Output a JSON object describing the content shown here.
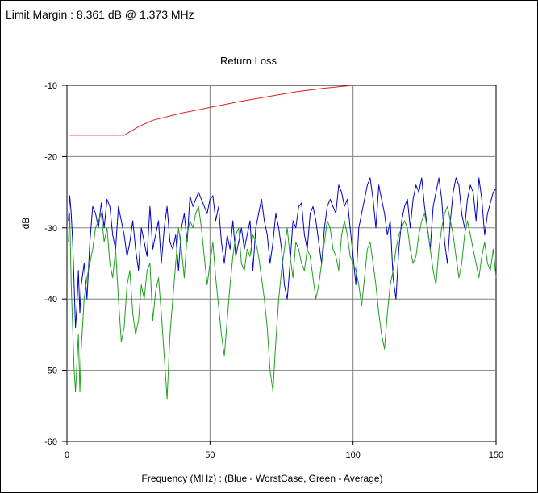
{
  "header": {
    "limit_margin": "Limit Margin : 8.361 dB @ 1.373 MHz"
  },
  "chart_data": {
    "type": "line",
    "title": "Return Loss",
    "xlabel": "Frequency (MHz) : (Blue - WorstCase, Green - Average)",
    "ylabel": "dB",
    "xlim": [
      0,
      150
    ],
    "ylim": [
      -60,
      -10
    ],
    "xticks": [
      0,
      50,
      100,
      150
    ],
    "yticks": [
      -10,
      -20,
      -30,
      -40,
      -50,
      -60
    ],
    "grid": true,
    "series": [
      {
        "key": "limit",
        "color": "#e02020",
        "x": [
          1,
          20,
          25,
          30,
          40,
          50,
          60,
          70,
          80,
          90,
          100
        ],
        "y": [
          -17,
          -17,
          -15.8,
          -14.9,
          -13.9,
          -13.1,
          -12.3,
          -11.6,
          -10.9,
          -10.4,
          -10
        ]
      },
      {
        "key": "worstcase",
        "color": "#0000c8",
        "x": [
          0.5,
          1,
          1.5,
          2,
          2.5,
          3,
          3.5,
          4,
          4.5,
          5,
          6,
          7,
          8,
          9,
          10,
          11,
          12,
          13,
          14,
          15,
          16,
          17,
          18,
          19,
          20,
          21,
          22,
          23,
          24,
          25,
          26,
          27,
          28,
          29,
          30,
          31,
          32,
          33,
          34,
          35,
          36,
          37,
          38,
          39,
          40,
          41,
          42,
          43,
          44,
          45,
          46,
          47,
          48,
          49,
          50,
          51,
          52,
          53,
          54,
          55,
          56,
          57,
          58,
          59,
          60,
          61,
          62,
          63,
          64,
          65,
          66,
          67,
          68,
          69,
          70,
          71,
          72,
          73,
          74,
          75,
          76,
          77,
          78,
          79,
          80,
          81,
          82,
          83,
          84,
          85,
          86,
          87,
          88,
          89,
          90,
          91,
          92,
          93,
          94,
          95,
          96,
          97,
          98,
          99,
          100,
          101,
          102,
          103,
          104,
          105,
          106,
          107,
          108,
          109,
          110,
          111,
          112,
          113,
          114,
          115,
          116,
          117,
          118,
          119,
          120,
          121,
          122,
          123,
          124,
          125,
          126,
          127,
          128,
          129,
          130,
          131,
          132,
          133,
          134,
          135,
          136,
          137,
          138,
          139,
          140,
          141,
          142,
          143,
          144,
          145,
          146,
          147,
          148,
          149,
          150
        ],
        "y": [
          -29,
          -25.5,
          -28,
          -32,
          -38,
          -44,
          -41,
          -36,
          -42,
          -38,
          -35,
          -40,
          -32,
          -27,
          -28,
          -30,
          -26.5,
          -30,
          -26,
          -27,
          -31,
          -33,
          -27,
          -29,
          -31,
          -34,
          -32,
          -29,
          -33,
          -36,
          -30,
          -32,
          -34,
          -27,
          -33,
          -31,
          -29,
          -35,
          -30,
          -27,
          -32,
          -33,
          -31,
          -36,
          -30,
          -28,
          -32,
          -25.5,
          -27,
          -26,
          -25,
          -26,
          -27,
          -28,
          -26,
          -25.5,
          -29,
          -27,
          -32,
          -35,
          -31,
          -33,
          -29,
          -34,
          -32,
          -30,
          -33,
          -31,
          -29,
          -36,
          -30,
          -28,
          -26,
          -29,
          -31,
          -35,
          -32,
          -28,
          -30,
          -33,
          -38,
          -40,
          -35,
          -29,
          -30,
          -27,
          -26.5,
          -31,
          -33,
          -28,
          -27,
          -29,
          -32,
          -35,
          -30,
          -27,
          -26,
          -27,
          -28,
          -24,
          -25,
          -27,
          -26,
          -30,
          -34,
          -38,
          -30,
          -28,
          -26,
          -24,
          -23,
          -26,
          -30,
          -24,
          -26,
          -28,
          -31,
          -29,
          -37,
          -40,
          -33,
          -29,
          -27,
          -26,
          -30,
          -26,
          -24,
          -25,
          -23,
          -27,
          -30,
          -33,
          -27,
          -25,
          -23,
          -26,
          -32,
          -35,
          -29,
          -25,
          -23,
          -24,
          -28,
          -30,
          -26,
          -24,
          -25,
          -29,
          -23,
          -26,
          -31,
          -28,
          -26.5,
          -25,
          -24.5
        ]
      },
      {
        "key": "average",
        "color": "#20a020",
        "x": [
          0.5,
          1,
          1.5,
          2,
          2.5,
          3,
          3.5,
          4,
          4.5,
          5,
          6,
          7,
          8,
          9,
          10,
          11,
          12,
          13,
          14,
          15,
          16,
          17,
          18,
          19,
          20,
          21,
          22,
          23,
          24,
          25,
          26,
          27,
          28,
          29,
          30,
          31,
          32,
          33,
          34,
          35,
          36,
          37,
          38,
          39,
          40,
          41,
          42,
          43,
          44,
          45,
          46,
          47,
          48,
          49,
          50,
          51,
          52,
          53,
          54,
          55,
          56,
          57,
          58,
          59,
          60,
          61,
          62,
          63,
          64,
          65,
          66,
          67,
          68,
          69,
          70,
          71,
          72,
          73,
          74,
          75,
          76,
          77,
          78,
          79,
          80,
          81,
          82,
          83,
          84,
          85,
          86,
          87,
          88,
          89,
          90,
          91,
          92,
          93,
          94,
          95,
          96,
          97,
          98,
          99,
          100,
          101,
          102,
          103,
          104,
          105,
          106,
          107,
          108,
          109,
          110,
          111,
          112,
          113,
          114,
          115,
          116,
          117,
          118,
          119,
          120,
          121,
          122,
          123,
          124,
          125,
          126,
          127,
          128,
          129,
          130,
          131,
          132,
          133,
          134,
          135,
          136,
          137,
          138,
          139,
          140,
          141,
          142,
          143,
          144,
          145,
          146,
          147,
          148,
          149,
          150
        ],
        "y": [
          -32,
          -28,
          -38,
          -44,
          -50,
          -53,
          -49,
          -45,
          -53,
          -47,
          -40,
          -37,
          -35,
          -33,
          -30,
          -29,
          -28,
          -32,
          -30,
          -35,
          -37,
          -33,
          -40,
          -46,
          -44,
          -38,
          -36,
          -42,
          -45,
          -43,
          -38,
          -40,
          -36,
          -35,
          -43,
          -39,
          -37,
          -42,
          -48,
          -54,
          -45,
          -40,
          -35,
          -30,
          -33,
          -37,
          -31,
          -29,
          -30,
          -28,
          -27,
          -30,
          -34,
          -38,
          -35,
          -32,
          -37,
          -41,
          -45,
          -48,
          -43,
          -38,
          -34,
          -31,
          -30,
          -35,
          -36,
          -33,
          -34,
          -31,
          -32,
          -34,
          -37,
          -40,
          -44,
          -50,
          -53,
          -46,
          -40,
          -36,
          -33,
          -30,
          -34,
          -37,
          -32,
          -33,
          -35,
          -36,
          -33,
          -34,
          -37,
          -40,
          -38,
          -35,
          -32,
          -29,
          -30,
          -33,
          -34,
          -36,
          -31,
          -29,
          -31,
          -34,
          -35,
          -36,
          -38,
          -41,
          -37,
          -33,
          -32,
          -35,
          -38,
          -42,
          -45,
          -47,
          -42,
          -38,
          -36,
          -33,
          -31,
          -30,
          -29,
          -30,
          -33,
          -35,
          -34,
          -31,
          -29,
          -28,
          -30,
          -33,
          -36,
          -38,
          -33,
          -30,
          -28,
          -27,
          -29,
          -31,
          -34,
          -37,
          -35,
          -31,
          -29,
          -31,
          -33,
          -35,
          -37,
          -34,
          -32,
          -35,
          -36,
          -33,
          -37
        ]
      }
    ]
  }
}
